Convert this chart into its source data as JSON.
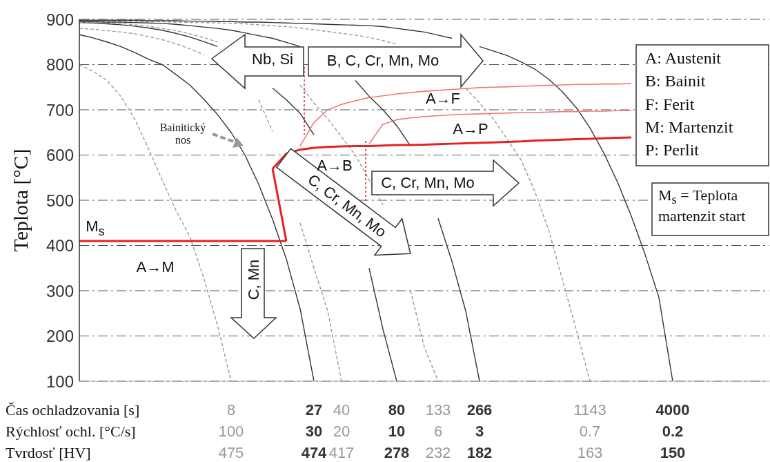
{
  "chart_data": {
    "type": "line",
    "ylabel": "Teplota [°C]",
    "categories": [
      null,
      null,
      null,
      null,
      null,
      null,
      null,
      null,
      null,
      null,
      null,
      null,
      null,
      null,
      null,
      null,
      null,
      null,
      null,
      null,
      null,
      null,
      null,
      null,
      null,
      null,
      null,
      null,
      null,
      null,
      null,
      null,
      null,
      null,
      null,
      null,
      null,
      null,
      null,
      null,
      null,
      null,
      null,
      null,
      null,
      null,
      null,
      null,
      null,
      null,
      null
    ],
    "ylim": [
      100,
      900
    ],
    "yticks": [
      100,
      200,
      300,
      400,
      500,
      600,
      700,
      800,
      900
    ],
    "grid": "y",
    "marker": "none",
    "tick_labels": "y",
    "series": [
      {
        "color": "#999999",
        "line_style": "dashed",
        "values": [
          800,
          785,
          765,
          730,
          680,
          615,
          545,
          478,
          420,
          330,
          225,
          100,
          null,
          null,
          null,
          null,
          null,
          null,
          null,
          null,
          null,
          null,
          null,
          null,
          null,
          null,
          null,
          null,
          null,
          null,
          null,
          null,
          null,
          null,
          null,
          null,
          null,
          null,
          null,
          null,
          null,
          null,
          null,
          null,
          null,
          null,
          null,
          null,
          null,
          null,
          null
        ]
      },
      {
        "color": "#333333",
        "line_style": "solid",
        "values": [
          866,
          859,
          850,
          840,
          827,
          812,
          800,
          778,
          755,
          724,
          690,
          650,
          600,
          535,
          458,
          370,
          260,
          100,
          null,
          null,
          null,
          null,
          null,
          null,
          null,
          null,
          null,
          null,
          null,
          null,
          null,
          null,
          null,
          null,
          null,
          null,
          null,
          null,
          null,
          null,
          null,
          null,
          null,
          null,
          null,
          null,
          null,
          null,
          null,
          null,
          null
        ]
      },
      {
        "color": "#999999",
        "line_style": "dashed",
        "values": [
          880,
          878,
          875,
          872,
          868,
          862,
          855,
          846,
          835,
          822,
          null,
          null,
          null,
          null,
          null,
          null,
          null,
          null,
          null,
          null,
          null,
          null,
          null,
          null,
          null,
          null,
          null,
          null,
          null,
          null,
          null,
          null,
          null,
          null,
          null,
          null,
          null,
          null,
          null,
          null,
          null,
          null,
          null,
          null,
          null,
          null,
          null,
          null,
          null,
          null,
          null
        ]
      },
      {
        "color": "#999999",
        "line_style": "dashed",
        "values": [
          null,
          null,
          null,
          null,
          null,
          null,
          null,
          null,
          null,
          null,
          null,
          null,
          null,
          722,
          652,
          null,
          null,
          null,
          null,
          null,
          null,
          null,
          null,
          null,
          null,
          null,
          null,
          null,
          null,
          null,
          null,
          null,
          null,
          null,
          null,
          null,
          null,
          null,
          null,
          null,
          null,
          null,
          null,
          null,
          null,
          null,
          null,
          null,
          null,
          null,
          null
        ]
      },
      {
        "color": "#999999",
        "line_style": "dashed",
        "values": [
          null,
          null,
          null,
          null,
          null,
          null,
          null,
          null,
          null,
          null,
          null,
          null,
          null,
          null,
          null,
          null,
          450,
          350,
          255,
          100,
          null,
          null,
          null,
          null,
          null,
          null,
          null,
          null,
          null,
          null,
          null,
          null,
          null,
          null,
          null,
          null,
          null,
          null,
          null,
          null,
          null,
          null,
          null,
          null,
          null,
          null,
          null,
          null,
          null,
          null,
          null
        ]
      },
      {
        "color": "#333333",
        "line_style": "solid",
        "values": [
          893,
          892,
          890,
          888,
          885,
          881,
          876,
          869,
          861,
          851,
          840,
          null,
          null,
          null,
          null,
          null,
          null,
          null,
          null,
          null,
          null,
          null,
          null,
          null,
          null,
          null,
          null,
          null,
          null,
          null,
          null,
          null,
          null,
          null,
          null,
          null,
          null,
          null,
          null,
          null,
          null,
          null,
          null,
          null,
          null,
          null,
          null,
          null,
          null,
          null,
          null
        ]
      },
      {
        "color": "#333333",
        "line_style": "solid",
        "values": [
          null,
          null,
          null,
          null,
          null,
          null,
          null,
          null,
          null,
          null,
          null,
          null,
          null,
          null,
          748,
          722,
          692,
          645,
          null,
          null,
          null,
          null,
          null,
          null,
          null,
          null,
          null,
          null,
          null,
          null,
          null,
          null,
          null,
          null,
          null,
          null,
          null,
          null,
          null,
          null,
          null,
          null,
          null,
          null,
          null,
          null,
          null,
          null,
          null,
          null,
          null
        ]
      },
      {
        "color": "#333333",
        "line_style": "solid",
        "values": [
          null,
          null,
          null,
          null,
          null,
          null,
          null,
          null,
          null,
          null,
          null,
          null,
          null,
          null,
          null,
          null,
          null,
          null,
          null,
          null,
          null,
          350,
          215,
          100,
          null,
          null,
          null,
          null,
          null,
          null,
          null,
          null,
          null,
          null,
          null,
          null,
          null,
          null,
          null,
          null,
          null,
          null,
          null,
          null,
          null,
          null,
          null,
          null,
          null,
          null,
          null
        ]
      },
      {
        "color": "#999999",
        "line_style": "dashed",
        "values": [
          893,
          893,
          892,
          891,
          888,
          885,
          880,
          875,
          868,
          860,
          850,
          null,
          null,
          null,
          null,
          null,
          null,
          null,
          null,
          null,
          null,
          null,
          null,
          null,
          null,
          null,
          null,
          null,
          null,
          null,
          null,
          null,
          null,
          null,
          null,
          null,
          null,
          null,
          null,
          null,
          null,
          null,
          null,
          null,
          null,
          null,
          null,
          null,
          null,
          null,
          null
        ]
      },
      {
        "color": "#999999",
        "line_style": "dashed",
        "values": [
          null,
          null,
          null,
          null,
          null,
          null,
          null,
          null,
          null,
          null,
          null,
          null,
          null,
          null,
          null,
          null,
          755,
          715,
          680,
          640,
          600,
          545,
          490,
          null,
          null,
          null,
          null,
          null,
          null,
          null,
          null,
          null,
          null,
          null,
          null,
          null,
          null,
          null,
          null,
          null,
          null,
          null,
          null,
          null,
          null,
          null,
          null,
          null,
          null,
          null,
          null
        ]
      },
      {
        "color": "#999999",
        "line_style": "dashed",
        "values": [
          null,
          null,
          null,
          null,
          null,
          null,
          null,
          null,
          null,
          null,
          null,
          null,
          null,
          null,
          null,
          null,
          null,
          null,
          null,
          null,
          null,
          null,
          null,
          null,
          300,
          175,
          100,
          null,
          null,
          null,
          null,
          null,
          null,
          null,
          null,
          null,
          null,
          null,
          null,
          null,
          null,
          null,
          null,
          null,
          null,
          null,
          null,
          null,
          null,
          null,
          null
        ]
      },
      {
        "color": "#333333",
        "line_style": "solid",
        "values": [
          895,
          895,
          894,
          894,
          893,
          892,
          891,
          889,
          886,
          883,
          880,
          876,
          870,
          864,
          858,
          849,
          840,
          null,
          null,
          null,
          null,
          null,
          null,
          null,
          null,
          null,
          null,
          null,
          null,
          null,
          null,
          null,
          null,
          null,
          null,
          null,
          null,
          null,
          null,
          null,
          null,
          null,
          null,
          null,
          null,
          null,
          null,
          null,
          null,
          null,
          null
        ]
      },
      {
        "color": "#333333",
        "line_style": "solid",
        "values": [
          null,
          null,
          null,
          null,
          null,
          null,
          null,
          null,
          null,
          null,
          null,
          null,
          null,
          null,
          null,
          null,
          null,
          null,
          null,
          null,
          765,
          730,
          700,
          665,
          620,
          null,
          null,
          null,
          null,
          null,
          null,
          null,
          null,
          null,
          null,
          null,
          null,
          null,
          null,
          null,
          null,
          null,
          null,
          null,
          null,
          null,
          null,
          null,
          null,
          null,
          null
        ]
      },
      {
        "color": "#333333",
        "line_style": "solid",
        "values": [
          null,
          null,
          null,
          null,
          null,
          null,
          null,
          null,
          null,
          null,
          null,
          null,
          null,
          null,
          null,
          null,
          null,
          null,
          null,
          null,
          null,
          null,
          null,
          null,
          null,
          null,
          460,
          365,
          255,
          100,
          null,
          null,
          null,
          null,
          null,
          null,
          null,
          null,
          null,
          null,
          null,
          null,
          null,
          null,
          null,
          null,
          null,
          null,
          null,
          null,
          null
        ]
      },
      {
        "color": "#999999",
        "line_style": "dashed",
        "values": [
          897,
          897,
          897,
          896,
          896,
          895,
          895,
          894,
          893,
          893,
          892,
          891,
          890,
          888,
          886,
          884,
          881,
          877,
          873,
          869,
          865,
          860,
          853,
          845,
          null,
          null,
          null,
          null,
          null,
          null,
          null,
          null,
          null,
          null,
          null,
          null,
          null,
          null,
          null,
          null,
          null,
          null,
          null,
          null,
          null,
          null,
          null,
          null,
          null,
          null,
          null
        ]
      },
      {
        "color": "#999999",
        "line_style": "dashed",
        "values": [
          null,
          null,
          null,
          null,
          null,
          null,
          null,
          null,
          null,
          null,
          null,
          null,
          null,
          null,
          null,
          null,
          null,
          null,
          null,
          null,
          null,
          null,
          null,
          null,
          null,
          null,
          null,
          null,
          748,
          715,
          680,
          635,
          590,
          520,
          435,
          325,
          215,
          100,
          null,
          null,
          null,
          null,
          null,
          null,
          null,
          null,
          null,
          null,
          null,
          null,
          null
        ]
      },
      {
        "color": "#333333",
        "line_style": "solid",
        "values": [
          898,
          898,
          898,
          898,
          898,
          897,
          897,
          897,
          896,
          896,
          895,
          895,
          894,
          894,
          893,
          892,
          891,
          890,
          889,
          888,
          887,
          886,
          884,
          880,
          876,
          872,
          865,
          858,
          null,
          null,
          null,
          null,
          null,
          null,
          null,
          null,
          null,
          null,
          null,
          null,
          null,
          null,
          null,
          null,
          null,
          null,
          null,
          null,
          null,
          null,
          null
        ]
      },
      {
        "color": "#333333",
        "line_style": "solid",
        "values": [
          null,
          null,
          null,
          null,
          null,
          null,
          null,
          null,
          null,
          null,
          null,
          null,
          null,
          null,
          null,
          null,
          null,
          null,
          null,
          null,
          null,
          null,
          null,
          null,
          null,
          null,
          null,
          null,
          null,
          840,
          830,
          820,
          806,
          790,
          768,
          740,
          705,
          660,
          605,
          540,
          465,
          380,
          285,
          100,
          null,
          null,
          null,
          null,
          null,
          null,
          null
        ]
      },
      {
        "color": "#e32222",
        "line_style": "solid",
        "values": [
          410,
          410,
          410,
          410,
          410,
          410,
          410,
          410,
          410,
          410,
          410,
          410,
          410,
          410,
          410,
          410,
          null,
          null,
          null,
          null,
          null,
          null,
          null,
          null,
          null,
          null,
          null,
          null,
          null,
          null,
          null,
          null,
          null,
          null,
          null,
          null,
          null,
          null,
          null,
          null,
          null,
          null,
          null,
          null,
          null,
          null,
          null,
          null,
          null,
          null,
          null
        ]
      },
      {
        "color": "#e32222",
        "line_style": "solid",
        "values": [
          null,
          null,
          null,
          null,
          null,
          null,
          null,
          null,
          null,
          null,
          null,
          null,
          null,
          null,
          570,
          410,
          null,
          null,
          null,
          null,
          null,
          null,
          null,
          null,
          null,
          null,
          null,
          null,
          null,
          null,
          null,
          null,
          null,
          null,
          null,
          null,
          null,
          null,
          null,
          null,
          null,
          null,
          null,
          null,
          null,
          null,
          null,
          null,
          null,
          null,
          null
        ]
      },
      {
        "color": "#e32222",
        "line_style": "solid",
        "values": [
          null,
          null,
          null,
          null,
          null,
          null,
          null,
          null,
          null,
          null,
          null,
          null,
          null,
          null,
          570,
          603,
          612,
          616,
          618,
          619,
          620,
          620,
          621,
          622,
          622,
          623,
          624,
          625,
          626,
          627,
          628,
          629,
          630,
          632,
          633,
          634,
          635,
          636,
          637,
          638,
          639,
          null,
          null,
          null,
          null,
          null,
          null,
          null,
          null,
          null,
          null
        ]
      },
      {
        "color": "#f07878",
        "line_style": "solid",
        "values": [
          null,
          null,
          null,
          null,
          null,
          null,
          null,
          null,
          null,
          null,
          null,
          null,
          null,
          null,
          null,
          null,
          620,
          672,
          700,
          712,
          720,
          727,
          731,
          735,
          738,
          741,
          743,
          745,
          747,
          749,
          750,
          751,
          752,
          753,
          754,
          755,
          756,
          756,
          757,
          757,
          758,
          null,
          null,
          null,
          null,
          null,
          null,
          null,
          null,
          null,
          null
        ]
      },
      {
        "color": "#f07878",
        "line_style": "solid",
        "values": [
          null,
          null,
          null,
          null,
          null,
          null,
          null,
          null,
          null,
          null,
          null,
          null,
          null,
          null,
          null,
          null,
          null,
          null,
          null,
          null,
          null,
          625,
          668,
          678,
          682,
          685,
          687,
          689,
          690,
          691,
          692,
          693,
          694,
          694,
          695,
          696,
          696,
          697,
          697,
          698,
          698,
          null,
          null,
          null,
          null,
          null,
          null,
          null,
          null,
          null,
          null
        ]
      }
    ],
    "annotations": [
      "Čas ochladzovania [s]",
      "8",
      "27",
      "40",
      "80",
      "133",
      "266",
      "1143",
      "4000",
      "Rýchlosť ochl. [°C/s]",
      "100",
      "30",
      "20",
      "10",
      "6",
      "3",
      "0.7",
      "0.2",
      "Tvrdosť [HV]",
      "475",
      "474",
      "417",
      "278",
      "232",
      "182",
      "163",
      "150",
      "Nb, Si",
      "B, C, Cr, Mn, Mo",
      "A→F",
      "A→P",
      "Bainitický nos",
      "A→B",
      "C, Cr, Mn, Mo",
      "C, Cr, Mn, Mo",
      "M$_{s}$",
      "A→M",
      "C, Mn",
      "A: Austenit",
      "B: Bainit",
      "F: Ferit",
      "M: Martenzit",
      "P: Perlit",
      "M$_{s}$ = Teplota martenzit start"
    ]
  }
}
